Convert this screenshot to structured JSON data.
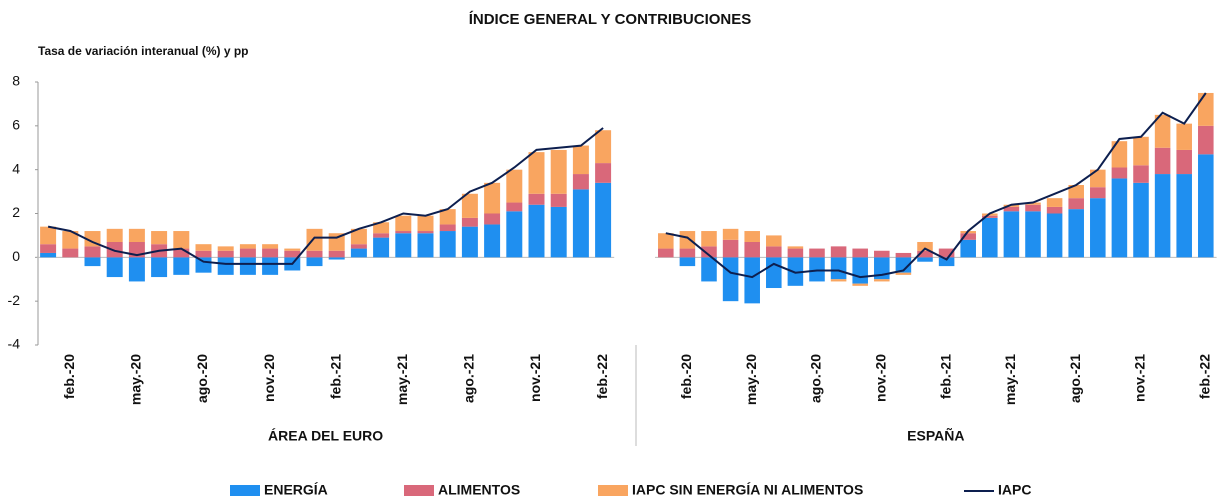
{
  "chart_data": {
    "type": "bar",
    "stacked": true,
    "title": "ÍNDICE GENERAL Y CONTRIBUCIONES",
    "y_label": "Tasa de variación interanual (%) y pp",
    "ylim": [
      -4,
      8
    ],
    "yticks": [
      -4,
      -2,
      0,
      2,
      4,
      6,
      8
    ],
    "series": [
      {
        "name": "ENERGÍA",
        "color": "#1f8ff0",
        "type": "bar"
      },
      {
        "name": "ALIMENTOS",
        "color": "#d9687a",
        "type": "bar"
      },
      {
        "name": "IAPC SIN ENERGÍA NI ALIMENTOS",
        "color": "#f9a560",
        "type": "bar"
      },
      {
        "name": "IAPC",
        "color": "#0d1f4f",
        "type": "line"
      }
    ],
    "panels": [
      {
        "label": "ÁREA DEL EURO",
        "categories": [
          null,
          "feb.-20",
          null,
          null,
          "may.-20",
          null,
          null,
          "ago.-20",
          null,
          null,
          "nov.-20",
          null,
          null,
          "feb.-21",
          null,
          null,
          "may.-21",
          null,
          null,
          "ago.-21",
          null,
          null,
          "nov.-21",
          null,
          null,
          "feb.-22"
        ],
        "values": [
          [
            0.2,
            0,
            -0.4,
            -0.9,
            -1.1,
            -0.9,
            -0.8,
            -0.7,
            -0.8,
            -0.8,
            -0.8,
            -0.6,
            -0.4,
            -0.1,
            0.4,
            0.9,
            1.1,
            1.1,
            1.2,
            1.4,
            1.5,
            2.1,
            2.4,
            2.3,
            3.1,
            3.4
          ],
          [
            0.4,
            0.4,
            0.5,
            0.7,
            0.7,
            0.6,
            0.4,
            0.3,
            0.3,
            0.4,
            0.4,
            0.3,
            0.3,
            0.3,
            0.2,
            0.2,
            0.1,
            0.1,
            0.3,
            0.4,
            0.5,
            0.4,
            0.5,
            0.6,
            0.7,
            0.9
          ],
          [
            0.8,
            0.8,
            0.7,
            0.6,
            0.6,
            0.6,
            0.8,
            0.3,
            0.2,
            0.2,
            0.2,
            0.1,
            1.0,
            0.8,
            0.7,
            0.5,
            0.7,
            0.7,
            0.7,
            1.1,
            1.4,
            1.5,
            1.9,
            2.0,
            1.3,
            1.5
          ],
          [
            1.4,
            1.2,
            0.7,
            0.3,
            0.1,
            0.3,
            0.4,
            -0.2,
            -0.3,
            -0.3,
            -0.3,
            -0.3,
            0.9,
            0.9,
            1.3,
            1.6,
            2.0,
            1.9,
            2.2,
            3.0,
            3.4,
            4.1,
            4.9,
            5.0,
            5.1,
            5.9
          ]
        ]
      },
      {
        "label": "ESPAÑA",
        "categories": [
          null,
          "feb.-20",
          null,
          null,
          "may.-20",
          null,
          null,
          "ago.-20",
          null,
          null,
          "nov.-20",
          null,
          null,
          "feb.-21",
          null,
          null,
          "may.-21",
          null,
          null,
          "ago.-21",
          null,
          null,
          "nov.-21",
          null,
          null,
          "feb.-22"
        ],
        "values": [
          [
            0,
            -0.4,
            -1.1,
            -2.0,
            -2.1,
            -1.4,
            -1.3,
            -1.1,
            -1.0,
            -1.2,
            -1.0,
            -0.7,
            -0.2,
            -0.4,
            0.8,
            1.8,
            2.1,
            2.1,
            2.0,
            2.2,
            2.7,
            3.6,
            3.4,
            3.8,
            3.8,
            4.7
          ],
          [
            0.4,
            0.4,
            0.5,
            0.8,
            0.7,
            0.5,
            0.4,
            0.4,
            0.5,
            0.4,
            0.3,
            0.2,
            0.3,
            0.4,
            0.3,
            0.1,
            0.2,
            0.3,
            0.3,
            0.5,
            0.5,
            0.5,
            0.8,
            1.2,
            1.1,
            1.3
          ],
          [
            0.7,
            0.8,
            0.7,
            0.5,
            0.5,
            0.5,
            0.1,
            0.0,
            -0.1,
            -0.1,
            -0.1,
            -0.1,
            0.4,
            0.0,
            0.1,
            0.1,
            0.1,
            0.1,
            0.4,
            0.6,
            0.8,
            1.2,
            1.3,
            1.5,
            1.2,
            1.5
          ],
          [
            1.1,
            0.9,
            0.1,
            -0.7,
            -0.9,
            -0.3,
            -0.7,
            -0.6,
            -0.6,
            -0.9,
            -0.8,
            -0.6,
            0.4,
            -0.1,
            1.2,
            2.0,
            2.4,
            2.5,
            2.9,
            3.3,
            4.0,
            5.4,
            5.5,
            6.6,
            6.1,
            7.5
          ]
        ]
      }
    ]
  }
}
